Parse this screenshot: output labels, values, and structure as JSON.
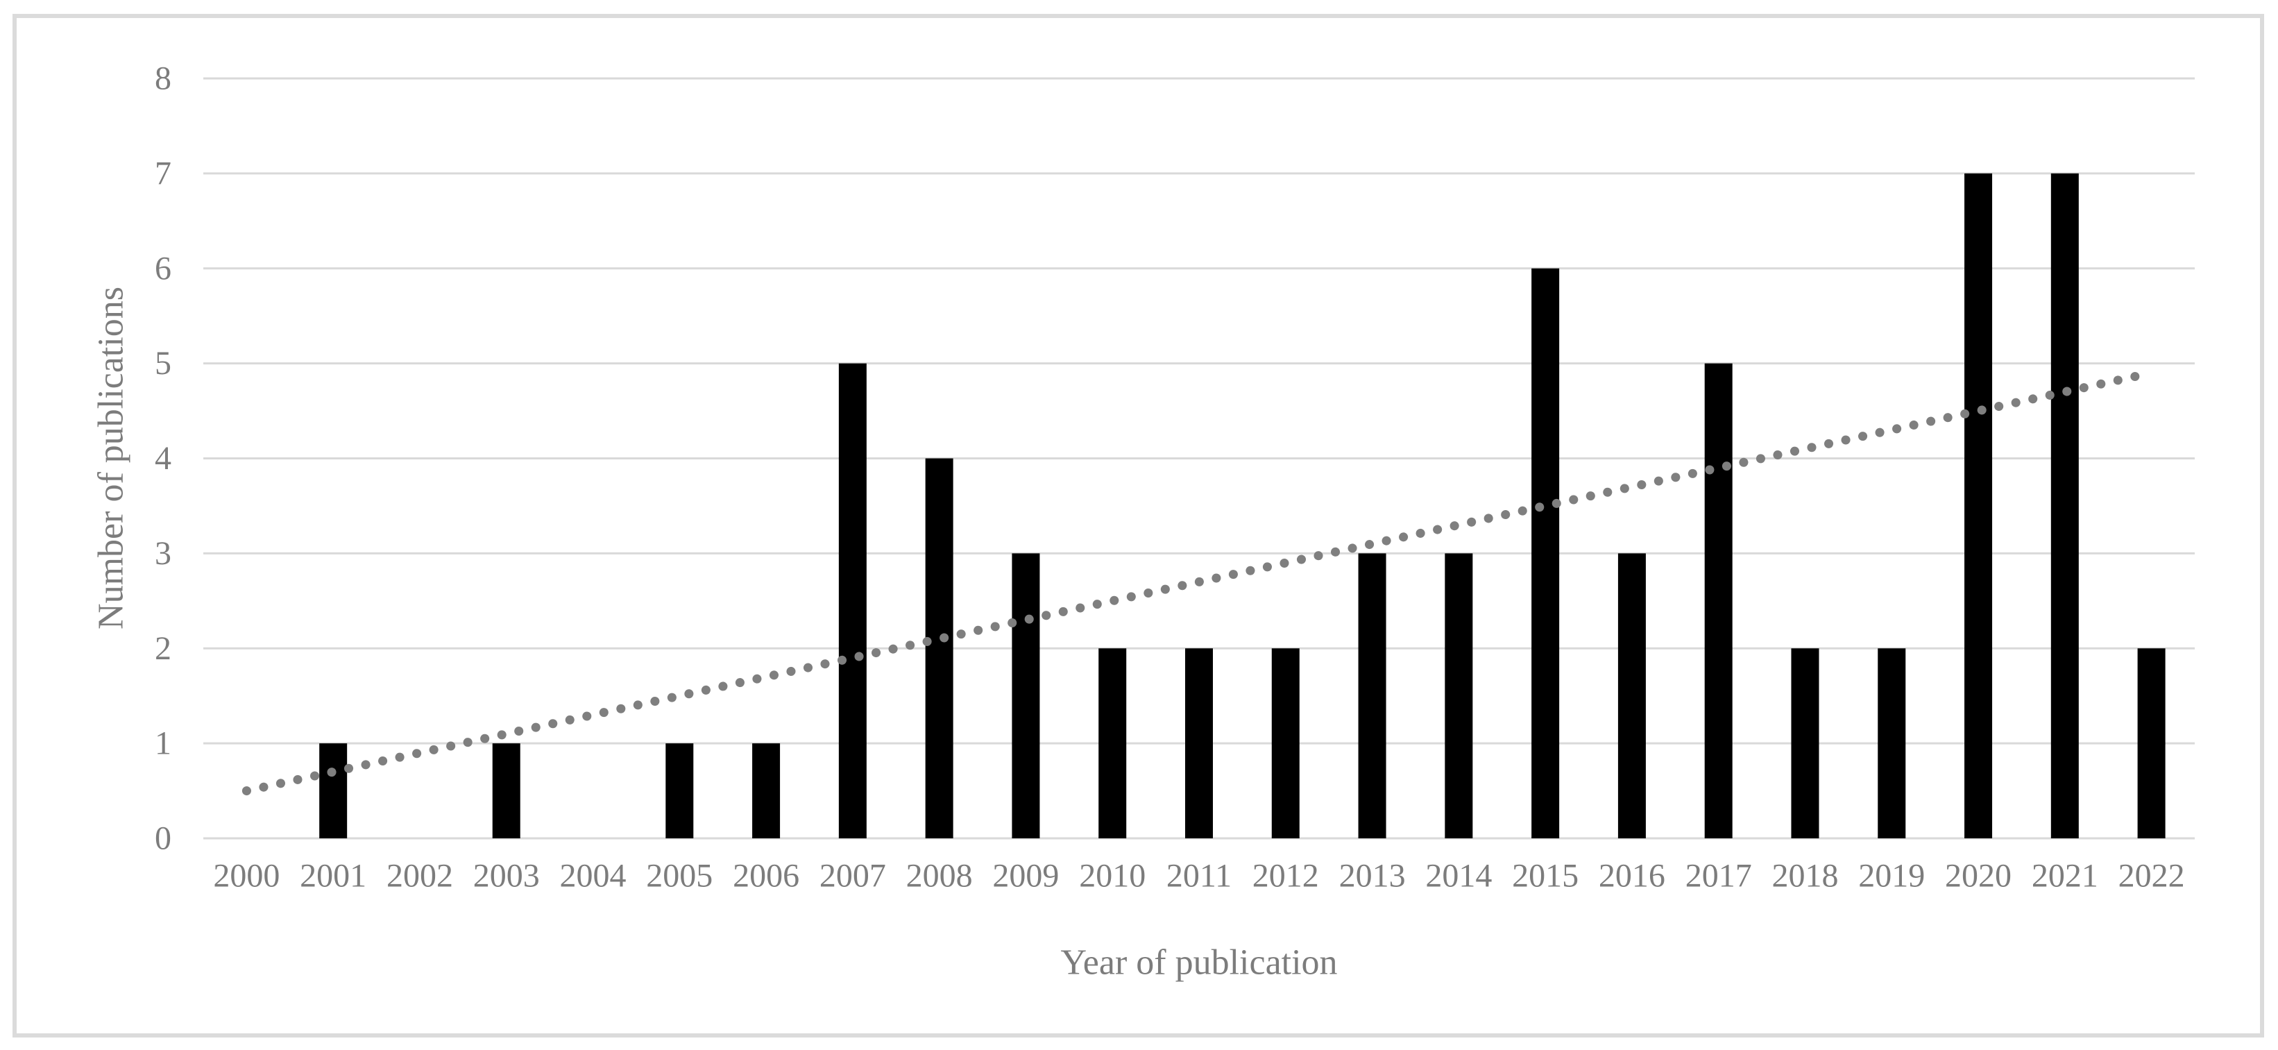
{
  "figure": {
    "background_color": "#FFFFFF",
    "border_color": "#DBDBDB"
  },
  "chart_data": {
    "type": "bar",
    "title": "",
    "xlabel": "Year of publication",
    "ylabel": "Number of publications",
    "categories": [
      "2000",
      "2001",
      "2002",
      "2003",
      "2004",
      "2005",
      "2006",
      "2007",
      "2008",
      "2009",
      "2010",
      "2011",
      "2012",
      "2013",
      "2014",
      "2015",
      "2016",
      "2017",
      "2018",
      "2019",
      "2020",
      "2021",
      "2022"
    ],
    "values": [
      0,
      1,
      0,
      1,
      0,
      1,
      1,
      5,
      4,
      3,
      2,
      2,
      2,
      3,
      3,
      6,
      3,
      5,
      2,
      2,
      7,
      7,
      2
    ],
    "ylim": [
      0,
      8
    ],
    "ytick_labels": [
      "0",
      "1",
      "2",
      "3",
      "4",
      "5",
      "6",
      "7",
      "8"
    ],
    "grid": "horizontal",
    "legend": "none",
    "bar_color": "#000000",
    "gridline_color": "#D9D9D9",
    "axis_text_color": "#7C7C7C",
    "trendline": {
      "type": "linear",
      "style": "dotted",
      "color": "#7F7F7F",
      "start_value": 0.5,
      "end_value": 4.9
    }
  }
}
